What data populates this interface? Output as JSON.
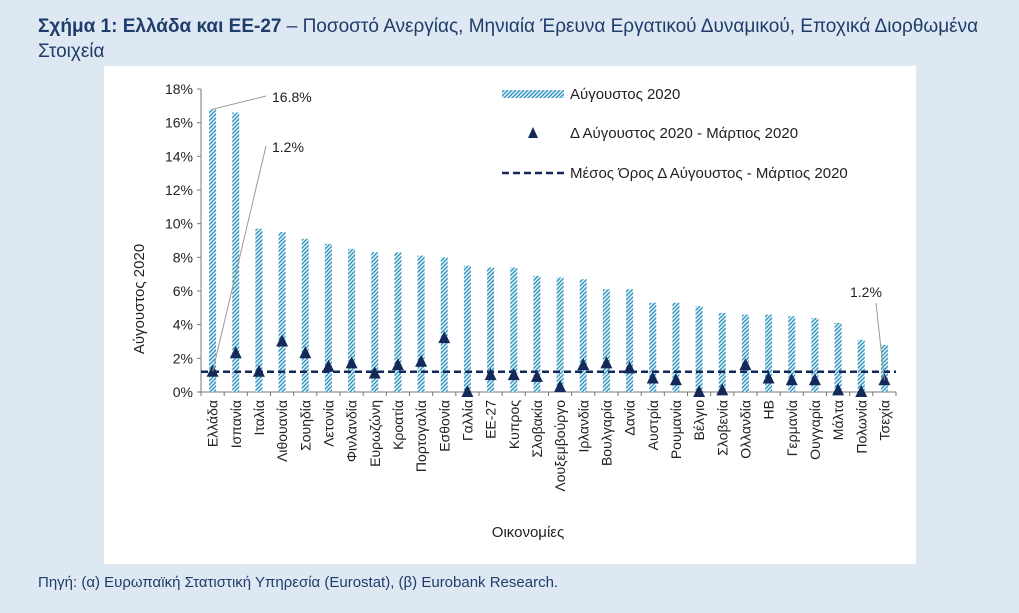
{
  "header": {
    "title_bold": "Σχήμα 1: Ελλάδα και ΕΕ-27",
    "title_rest": " – Ποσοστό Ανεργίας, Μηνιαία Έρευνα Εργατικού Δυναμικού, Εποχικά Διορθωμένα Στοιχεία"
  },
  "footer": {
    "source": "Πηγή: (α) Ευρωπαϊκή Στατιστική Υπηρεσία (Eurostat), (β) Eurobank Research."
  },
  "colors": {
    "bar": "#3a9cc4",
    "marker": "#14285a",
    "mean_line": "#14285a",
    "panel_bg": "#ffffff",
    "page_bg": "#dde8f3",
    "title": "#1f3c6b"
  },
  "chart_data": {
    "type": "bar",
    "title": "",
    "xlabel": "Οικονομίες",
    "ylabel": "Αύγουστος 2020",
    "ylim": [
      0,
      18
    ],
    "yticks": [
      "0%",
      "2%",
      "4%",
      "6%",
      "8%",
      "10%",
      "12%",
      "14%",
      "16%",
      "18%"
    ],
    "grid": false,
    "legend_position": "top-right",
    "categories": [
      "Ελλάδα",
      "Ισπανία",
      "Ιταλία",
      "Λιθουανία",
      "Σουηδία",
      "Λετονία",
      "Φινλανδία",
      "Ευρωζώνη",
      "Κροατία",
      "Πορτογαλία",
      "Εσθονία",
      "Γαλλία",
      "ΕΕ-27",
      "Κυπρος",
      "Σλοβακία",
      "Λουξεμβούργο",
      "Ιρλανδία",
      "Βουλγαρία",
      "Δανία",
      "Αυστρία",
      "Ρουμανία",
      "Βέλγιο",
      "Σλοβενία",
      "Ολλανδία",
      "ΗΒ",
      "Γερμανία",
      "Ουγγαρία",
      "Μάλτα",
      "Πολωνία",
      "Τσεχία"
    ],
    "series": [
      {
        "name": "Αύγουστος 2020",
        "kind": "bar",
        "values": [
          16.8,
          16.6,
          9.7,
          9.5,
          9.1,
          8.8,
          8.5,
          8.3,
          8.3,
          8.1,
          8.0,
          7.5,
          7.4,
          7.4,
          6.9,
          6.8,
          6.7,
          6.1,
          6.1,
          5.3,
          5.3,
          5.1,
          4.7,
          4.6,
          4.6,
          4.5,
          4.4,
          4.1,
          3.1,
          2.8
        ]
      },
      {
        "name": "Δ Αύγουστος 2020 - Μάρτιος 2020",
        "kind": "marker",
        "values": [
          1.2,
          2.3,
          1.2,
          3.0,
          2.3,
          1.5,
          1.7,
          1.1,
          1.6,
          1.8,
          3.2,
          0.0,
          1.0,
          1.0,
          0.9,
          0.3,
          1.6,
          1.7,
          1.4,
          0.8,
          0.7,
          0.0,
          0.1,
          1.6,
          0.8,
          0.7,
          0.7,
          0.1,
          0.0,
          0.7
        ]
      },
      {
        "name": "Μέσος Όρος Δ Αύγουστος - Μάρτιος 2020",
        "kind": "line",
        "value": 1.2
      }
    ],
    "annotations": [
      {
        "text": "16.8%",
        "category": "Ελλάδα",
        "series": "bar"
      },
      {
        "text": "1.2%",
        "category": "Ελλάδα",
        "series": "marker"
      },
      {
        "text": "1.2%",
        "category": "Τσεχία",
        "series": "marker"
      }
    ]
  }
}
